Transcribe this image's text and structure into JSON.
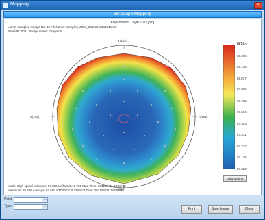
{
  "window": {
    "title": "Mapping",
    "close_glyph": "×"
  },
  "ribbon": {
    "title": "2D Graph Mapping"
  },
  "graph": {
    "subtitle": "Ellipsometer Layer 1 / 0 [nm]",
    "info_line1": "Lot ID: Sample2  Recipe No: 13  FileName: Sample2_0001_20110811143645.csv",
    "info_line2": "Panel ID: 0001  Recipe Name: 165points",
    "unit": "[nm]",
    "axis_top": "Y(152)",
    "axis_bottom": "Y(52)",
    "axis_left": "X(152)",
    "axis_right": "X(152)",
    "colorbar_ticks": [
      "88.440",
      "88.286",
      "88.106",
      "88.017",
      "87.866",
      "87.735",
      "87.604",
      "87.493",
      "87.341",
      "87.212",
      "87.176",
      "87.020"
    ],
    "scale_colors": [
      "#d8261c",
      "#f2a13a",
      "#f6e85a",
      "#3eb14e",
      "#27a7d8",
      "#1f5fb0"
    ],
    "data_setting_label": "Data Setting",
    "stats_line1": "Mode: High-speed  Minimum: 87.020  Uniformity: 0.721  Start Time: 2011/08/11 13:08:43",
    "stats_line2": "Maximum: 88.440  Average: 87.650  STD/DEV: 0.326  End Time: 2011/08/11 13:08:59"
  },
  "bottom": {
    "field1_label": "Point",
    "field2_label": "Type",
    "print_label": "Print",
    "save_image_label": "Save Image",
    "close_label": "Close"
  }
}
